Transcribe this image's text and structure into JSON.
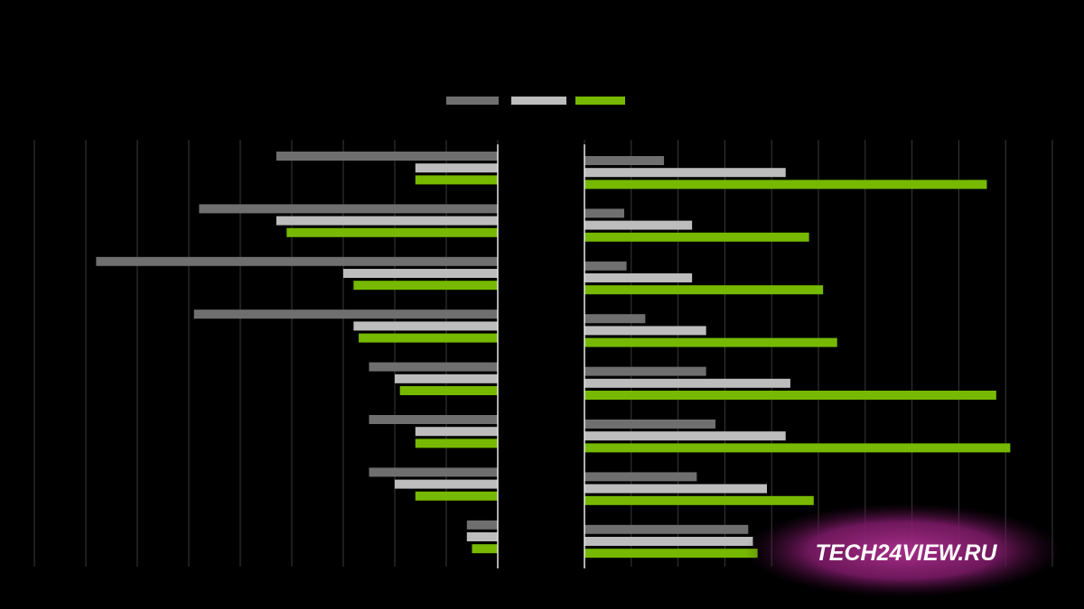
{
  "chart_data": [
    {
      "type": "bar",
      "orientation": "horizontal",
      "categories": [
        null,
        null,
        null,
        null,
        null,
        null,
        null,
        null
      ],
      "series": [
        {
          "color": "#6f6f6f",
          "values": [
            4.3,
            5.8,
            7.8,
            5.9,
            2.5,
            2.5,
            2.5,
            0.6
          ]
        },
        {
          "color": "#bdbdbd",
          "values": [
            1.6,
            4.3,
            3.0,
            2.8,
            2.0,
            1.6,
            2.0,
            0.6
          ]
        },
        {
          "color": "#76b900",
          "values": [
            1.6,
            4.1,
            2.8,
            2.7,
            1.9,
            1.6,
            1.6,
            0.5
          ]
        }
      ],
      "xlim": [
        9,
        0
      ],
      "xticks": [
        0,
        1,
        2,
        3,
        4,
        5,
        6,
        7,
        8,
        9
      ],
      "grid": true
    },
    {
      "type": "bar",
      "orientation": "horizontal",
      "categories": [
        null,
        null,
        null,
        null,
        null,
        null,
        null,
        null
      ],
      "series": [
        {
          "color": "#6f6f6f",
          "values": [
            1.7,
            0.85,
            0.9,
            1.3,
            2.6,
            2.8,
            2.4,
            3.5
          ]
        },
        {
          "color": "#bdbdbd",
          "values": [
            4.3,
            2.3,
            2.3,
            2.6,
            4.4,
            4.3,
            3.9,
            3.6
          ]
        },
        {
          "color": "#76b900",
          "values": [
            8.6,
            4.8,
            5.1,
            5.4,
            8.8,
            9.1,
            4.9,
            3.7
          ]
        }
      ],
      "xlim": [
        0,
        10
      ],
      "xticks": [
        0,
        1,
        2,
        3,
        4,
        5,
        6,
        7,
        8,
        9,
        10
      ],
      "grid": true
    }
  ],
  "watermark": "TECH24VIEW.RU"
}
